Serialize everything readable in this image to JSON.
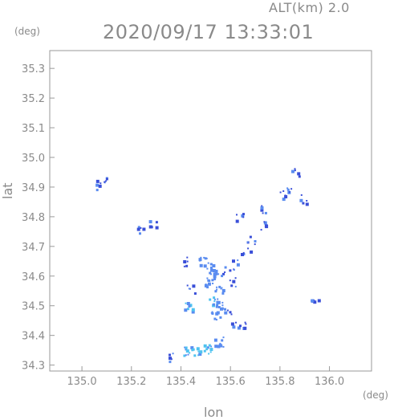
{
  "header": {
    "alt_label": "ALT(km)  2.0",
    "timestamp": "2020/09/17 13:33:01"
  },
  "chart_data": {
    "type": "heatmap",
    "title": "2020/09/17 13:33:01",
    "subtitle": "ALT(km)  2.0",
    "xlabel": "lon",
    "ylabel": "lat",
    "x_unit": "(deg)",
    "y_unit": "(deg)",
    "xlim": [
      134.87,
      136.17
    ],
    "ylim": [
      34.28,
      35.36
    ],
    "x_ticks": [
      135.0,
      135.2,
      135.4,
      135.6,
      135.8,
      136.0
    ],
    "x_tick_labels": [
      "135.0",
      "135.2",
      "135.4",
      "135.6",
      "135.8",
      "136.0"
    ],
    "y_ticks": [
      34.3,
      34.4,
      34.5,
      34.6,
      34.7,
      34.8,
      34.9,
      35.0,
      35.1,
      35.2,
      35.3
    ],
    "y_tick_labels": [
      "34.3",
      "34.4",
      "34.5",
      "34.6",
      "34.7",
      "34.8",
      "34.9",
      "35.0",
      "35.1",
      "35.2",
      "35.3"
    ],
    "grid": false,
    "colors": {
      "low": "#3a4fd8",
      "mid": "#5a8cf0",
      "high": "#4ec3f0",
      "axis": "#999999"
    },
    "echoes": [
      {
        "lon": 135.09,
        "lat": 34.92,
        "level": "low"
      },
      {
        "lon": 135.07,
        "lat": 34.91,
        "level": "low"
      },
      {
        "lon": 135.24,
        "lat": 34.76,
        "level": "low"
      },
      {
        "lon": 135.28,
        "lat": 34.78,
        "level": "low"
      },
      {
        "lon": 135.42,
        "lat": 34.65,
        "level": "low"
      },
      {
        "lon": 135.49,
        "lat": 34.65,
        "level": "mid"
      },
      {
        "lon": 135.52,
        "lat": 34.64,
        "level": "mid"
      },
      {
        "lon": 135.53,
        "lat": 34.61,
        "level": "mid"
      },
      {
        "lon": 135.51,
        "lat": 34.58,
        "level": "mid"
      },
      {
        "lon": 135.55,
        "lat": 34.56,
        "level": "mid"
      },
      {
        "lon": 135.53,
        "lat": 34.52,
        "level": "high"
      },
      {
        "lon": 135.56,
        "lat": 34.5,
        "level": "mid"
      },
      {
        "lon": 135.54,
        "lat": 34.47,
        "level": "mid"
      },
      {
        "lon": 135.59,
        "lat": 34.48,
        "level": "low"
      },
      {
        "lon": 135.61,
        "lat": 34.44,
        "level": "low"
      },
      {
        "lon": 135.58,
        "lat": 34.62,
        "level": "low"
      },
      {
        "lon": 135.62,
        "lat": 34.64,
        "level": "low"
      },
      {
        "lon": 135.66,
        "lat": 34.68,
        "level": "low"
      },
      {
        "lon": 135.6,
        "lat": 34.58,
        "level": "low"
      },
      {
        "lon": 135.43,
        "lat": 34.5,
        "level": "high"
      },
      {
        "lon": 135.44,
        "lat": 34.56,
        "level": "low"
      },
      {
        "lon": 135.55,
        "lat": 34.38,
        "level": "mid"
      },
      {
        "lon": 135.65,
        "lat": 34.43,
        "level": "low"
      },
      {
        "lon": 135.42,
        "lat": 34.35,
        "level": "high"
      },
      {
        "lon": 135.46,
        "lat": 34.35,
        "level": "high"
      },
      {
        "lon": 135.5,
        "lat": 34.355,
        "level": "high"
      },
      {
        "lon": 135.36,
        "lat": 34.33,
        "level": "low"
      },
      {
        "lon": 135.81,
        "lat": 34.88,
        "level": "low"
      },
      {
        "lon": 135.83,
        "lat": 34.9,
        "level": "low"
      },
      {
        "lon": 135.86,
        "lat": 34.95,
        "level": "low"
      },
      {
        "lon": 135.89,
        "lat": 34.86,
        "level": "low"
      },
      {
        "lon": 135.74,
        "lat": 34.83,
        "level": "low"
      },
      {
        "lon": 135.72,
        "lat": 34.77,
        "level": "low"
      },
      {
        "lon": 135.94,
        "lat": 34.53,
        "level": "low"
      },
      {
        "lon": 135.68,
        "lat": 34.72,
        "level": "low"
      },
      {
        "lon": 135.63,
        "lat": 34.8,
        "level": "low"
      }
    ]
  }
}
